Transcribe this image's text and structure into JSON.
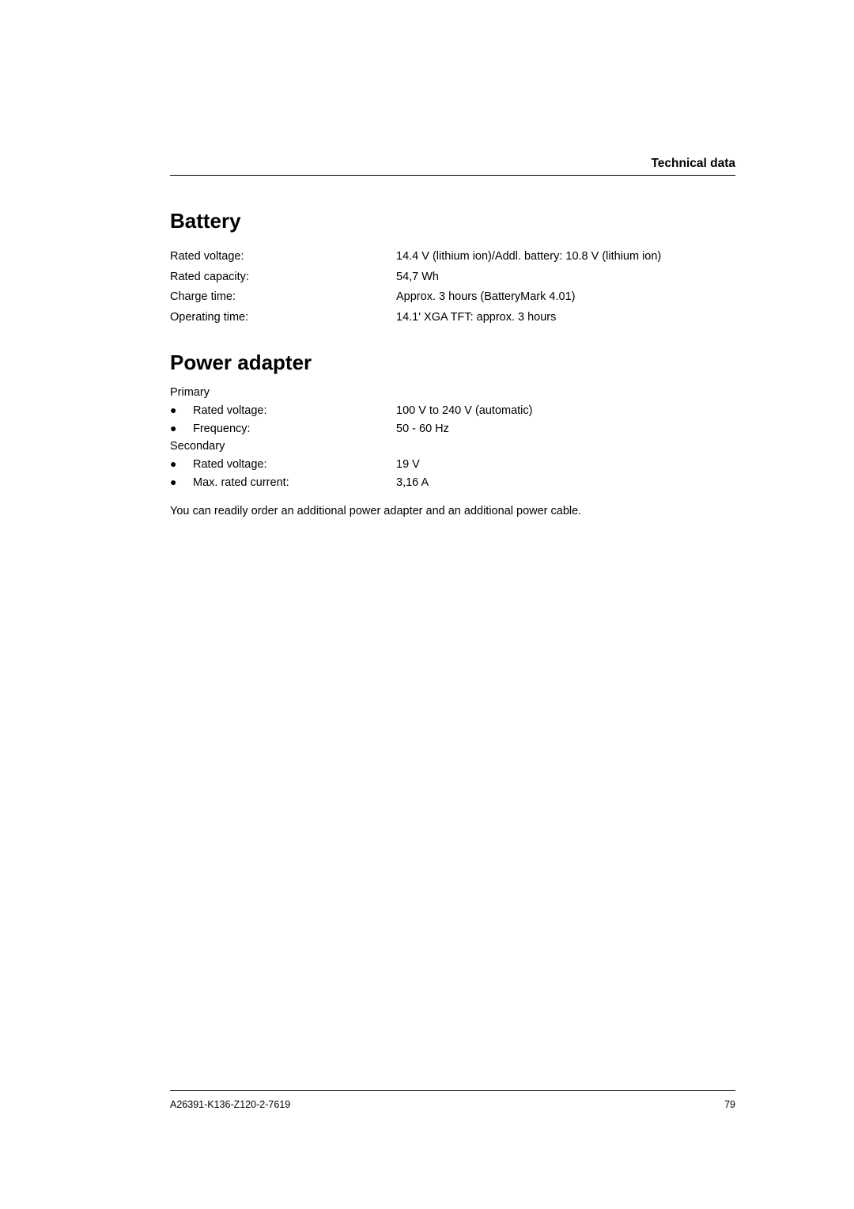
{
  "header": {
    "title": "Technical data"
  },
  "sections": {
    "battery": {
      "heading": "Battery",
      "rows": [
        {
          "label": "Rated voltage:",
          "value": "14.4 V (lithium ion)/Addl. battery: 10.8 V (lithium ion)"
        },
        {
          "label": "Rated capacity:",
          "value": "54,7 Wh"
        },
        {
          "label": "Charge time:",
          "value": "Approx. 3 hours (BatteryMark 4.01)"
        },
        {
          "label": "Operating time:",
          "value": "14.1' XGA TFT: approx. 3 hours"
        }
      ]
    },
    "power_adapter": {
      "heading": "Power adapter",
      "primary_label": "Primary",
      "primary_rows": [
        {
          "label": "Rated voltage:",
          "value": "100 V to 240 V (automatic)"
        },
        {
          "label": "Frequency:",
          "value": "50 - 60 Hz"
        }
      ],
      "secondary_label": "Secondary",
      "secondary_rows": [
        {
          "label": "Rated voltage:",
          "value": "19 V"
        },
        {
          "label": "Max. rated current:",
          "value": "3,16 A"
        }
      ],
      "note": "You can readily order an additional power adapter and an additional power cable."
    }
  },
  "footer": {
    "doc_id": "A26391-K136-Z120-2-7619",
    "page": "79"
  }
}
